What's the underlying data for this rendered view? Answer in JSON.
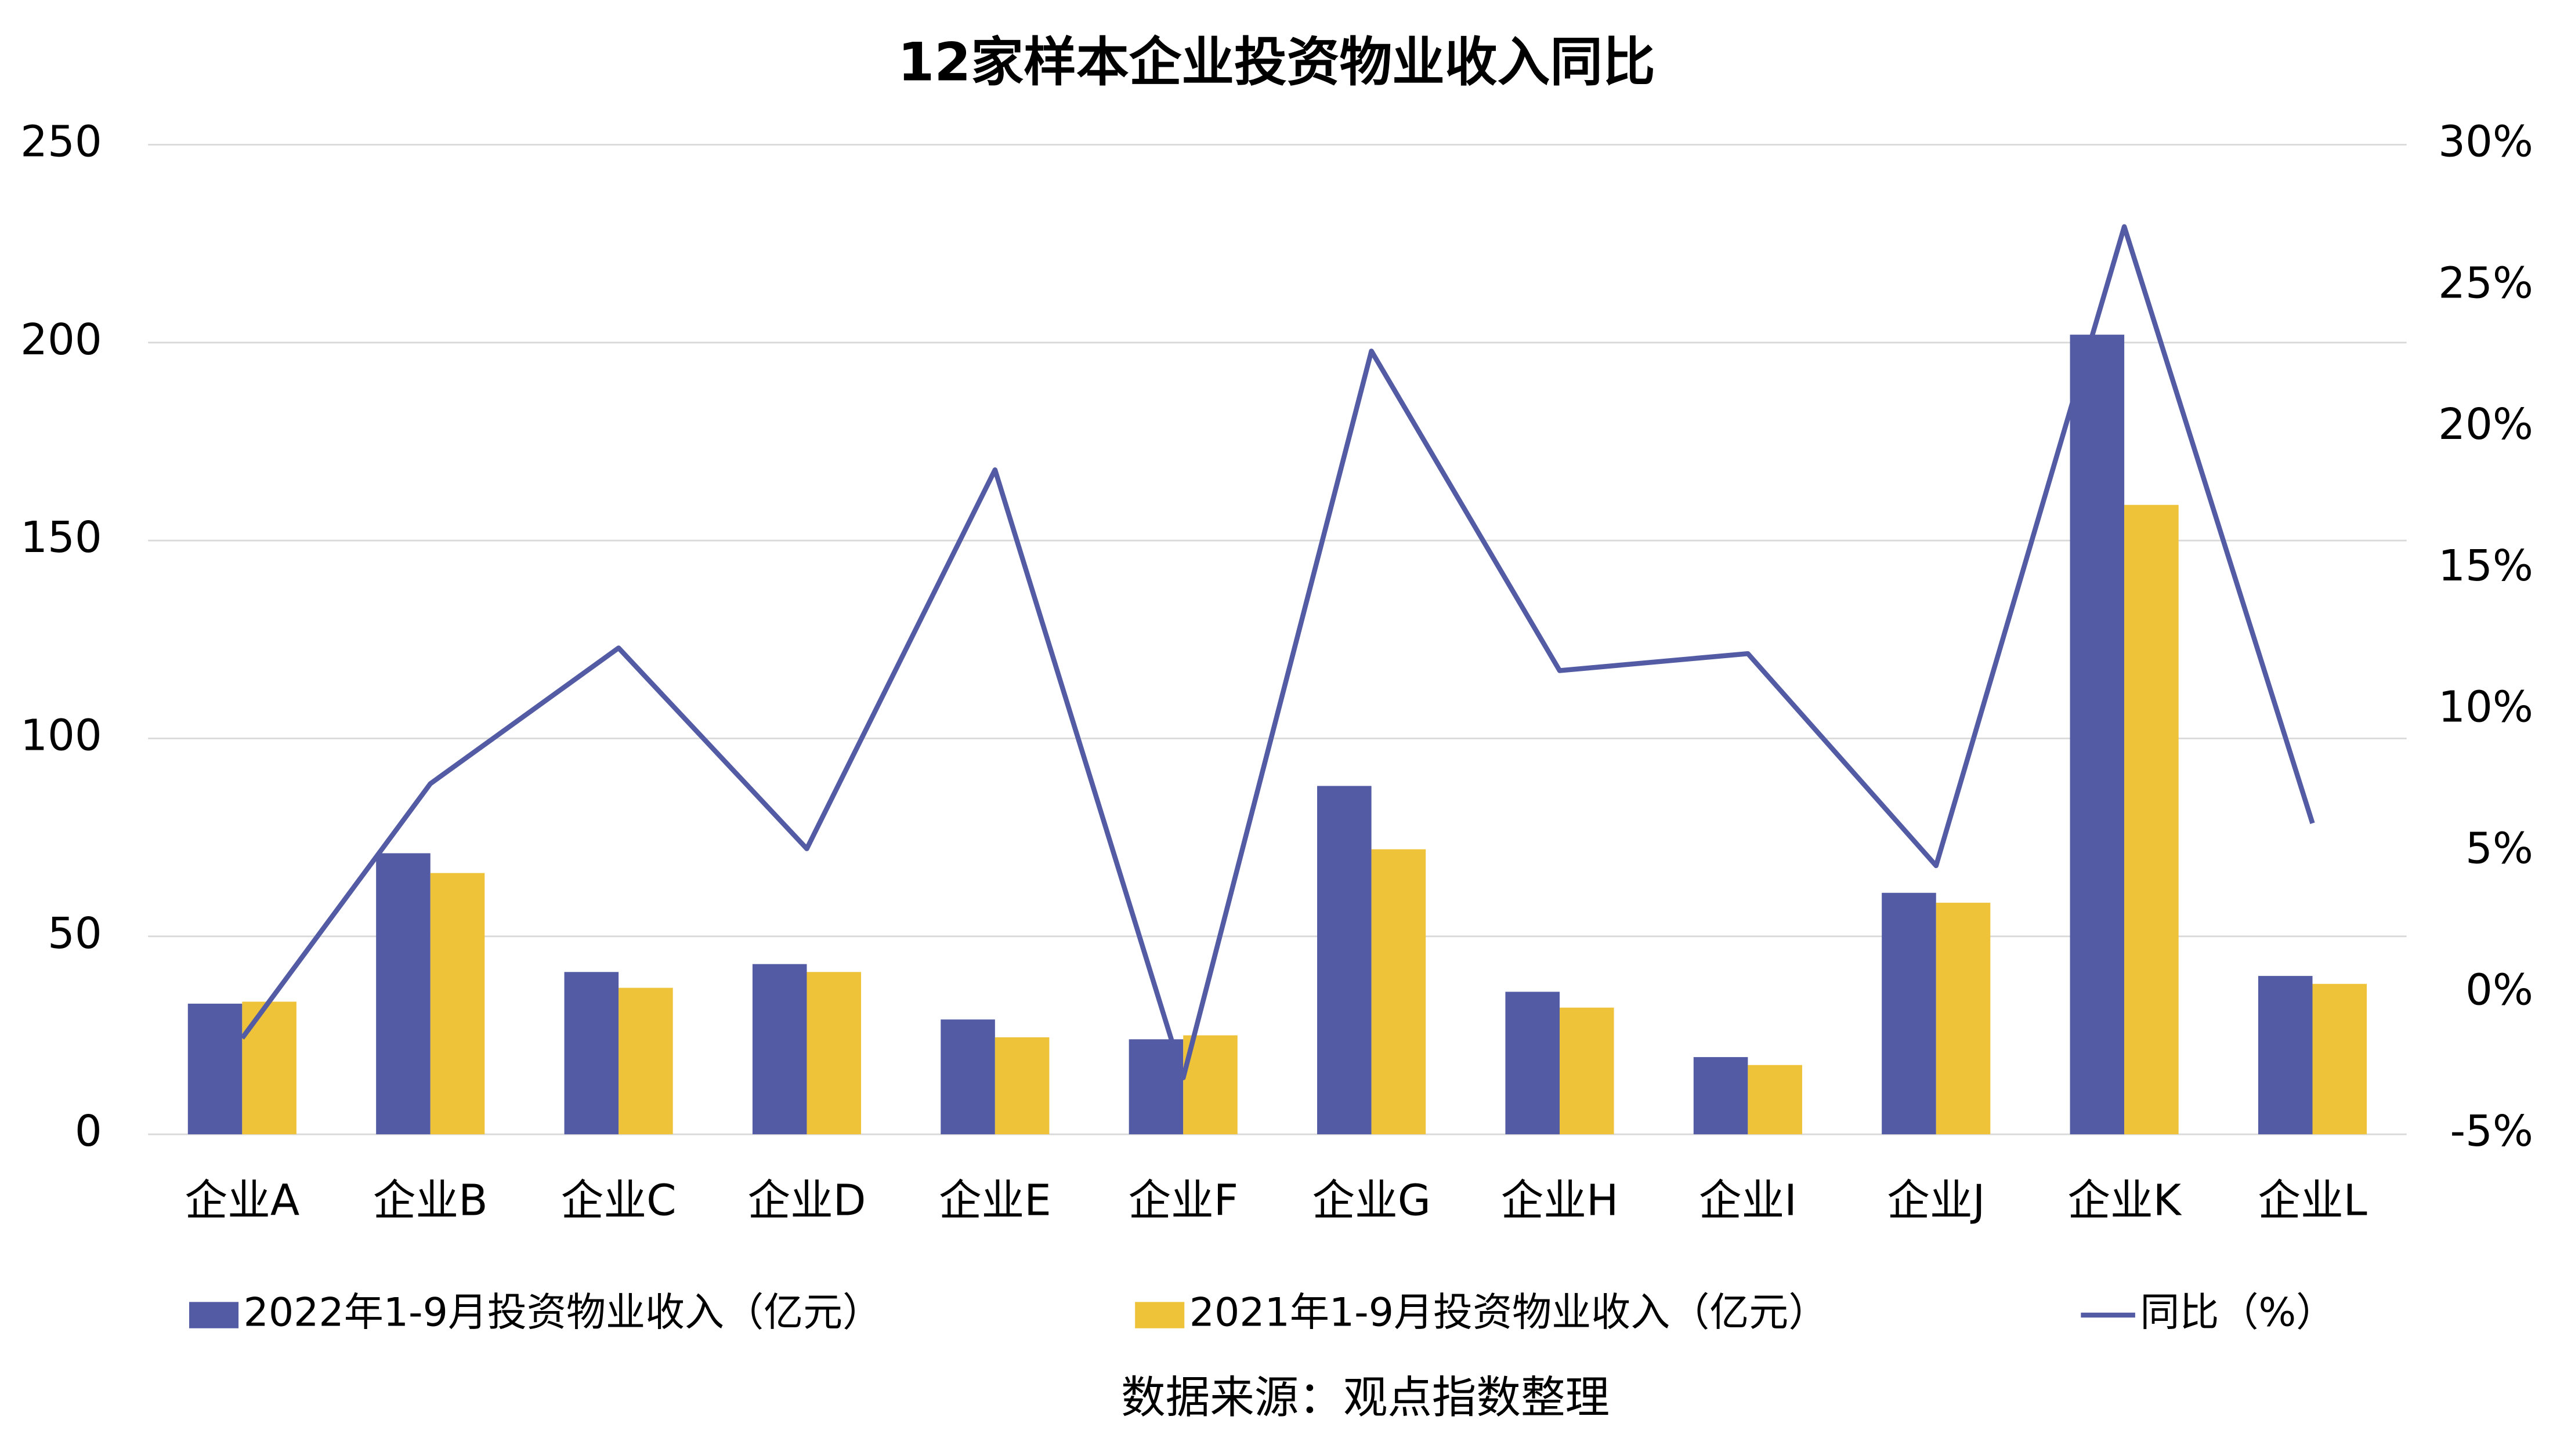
{
  "chart_data": {
    "type": "bar_line",
    "title": "12家样本企业投资物业收入同比",
    "source": "数据来源：观点指数整理",
    "categories": [
      "企业A",
      "企业B",
      "企业C",
      "企业D",
      "企业E",
      "企业F",
      "企业G",
      "企业H",
      "企业I",
      "企业J",
      "企业K",
      "企业L"
    ],
    "series": [
      {
        "name": "2022年1-9月投资物业收入（亿元）",
        "type": "bar",
        "color": "#525ba3",
        "values": [
          33,
          71,
          41,
          43,
          29,
          24,
          88,
          36,
          19.5,
          61,
          202,
          40
        ]
      },
      {
        "name": "2021年1-9月投资物业收入（亿元）",
        "type": "bar",
        "color": "#eec239",
        "values": [
          33.5,
          66,
          37,
          41,
          24.5,
          25,
          72,
          32,
          17.5,
          58.5,
          159,
          38
        ]
      },
      {
        "name": "同比（%）",
        "type": "line",
        "axis": "y2",
        "color": "#525ba3",
        "values": [
          -1.6,
          7.4,
          12.2,
          5.1,
          18.5,
          -3.0,
          22.7,
          11.4,
          12.0,
          4.5,
          27.1,
          6.0
        ]
      }
    ],
    "ylim": [
      0,
      250
    ],
    "yticks": [
      0,
      50,
      100,
      150,
      200,
      250
    ],
    "y2lim": [
      -5,
      30
    ],
    "y2ticks": [
      {
        "value": -5,
        "label": "-5%"
      },
      {
        "value": 0,
        "label": "0%"
      },
      {
        "value": 5,
        "label": "5%"
      },
      {
        "value": 10,
        "label": "10%"
      },
      {
        "value": 15,
        "label": "15%"
      },
      {
        "value": 20,
        "label": "20%"
      },
      {
        "value": 25,
        "label": "25%"
      },
      {
        "value": 30,
        "label": "30%"
      }
    ],
    "grid": true
  }
}
